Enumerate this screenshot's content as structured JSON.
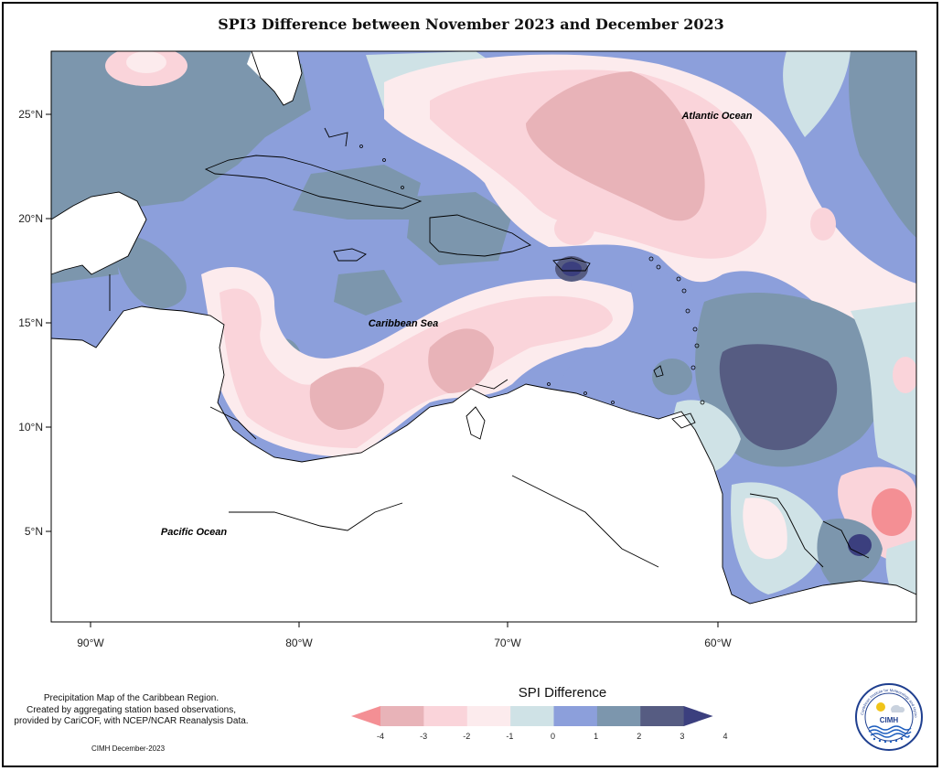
{
  "title": "SPI3 Difference between November 2023 and December 2023",
  "ocean_labels": {
    "atlantic": "Atlantic Ocean",
    "caribbean": "Caribbean Sea",
    "pacific": "Pacific Ocean"
  },
  "axes": {
    "lat_ticks": [
      "25°N",
      "20°N",
      "15°N",
      "10°N",
      "5°N"
    ],
    "lon_ticks": [
      "90°W",
      "80°W",
      "70°W",
      "60°W"
    ]
  },
  "credits": {
    "line1": "Precipitation Map of the Caribbean Region.",
    "line2": "Created by aggregating station based observations,",
    "line3": "provided by CariCOF, with NCEP/NCAR Reanalysis Data.",
    "footer": "CIMH December-2023"
  },
  "legend": {
    "title": "SPI Difference",
    "ticks": [
      "-4",
      "-3",
      "-2",
      "-1",
      "0",
      "1",
      "2",
      "3",
      "4"
    ],
    "colors": [
      "#f48f94",
      "#e8b3b8",
      "#fad4da",
      "#fcebed",
      "#cfe2e6",
      "#8c9fdb",
      "#7c96ad",
      "#565c82",
      "#3b3f7e"
    ]
  },
  "logo": {
    "text": "CIMH",
    "ring_text": "Caribbean Institute for Meteorology and Hydrology"
  },
  "colors": {
    "strong_dry": "#f48f94",
    "dry": "#e8b3b8",
    "mild_dry": "#fad4da",
    "near_normal_dry": "#fcebed",
    "near_normal_wet": "#cfe2e6",
    "wet": "#8c9fdb",
    "very_wet": "#7c96ad",
    "extreme_wet": "#565c82"
  }
}
